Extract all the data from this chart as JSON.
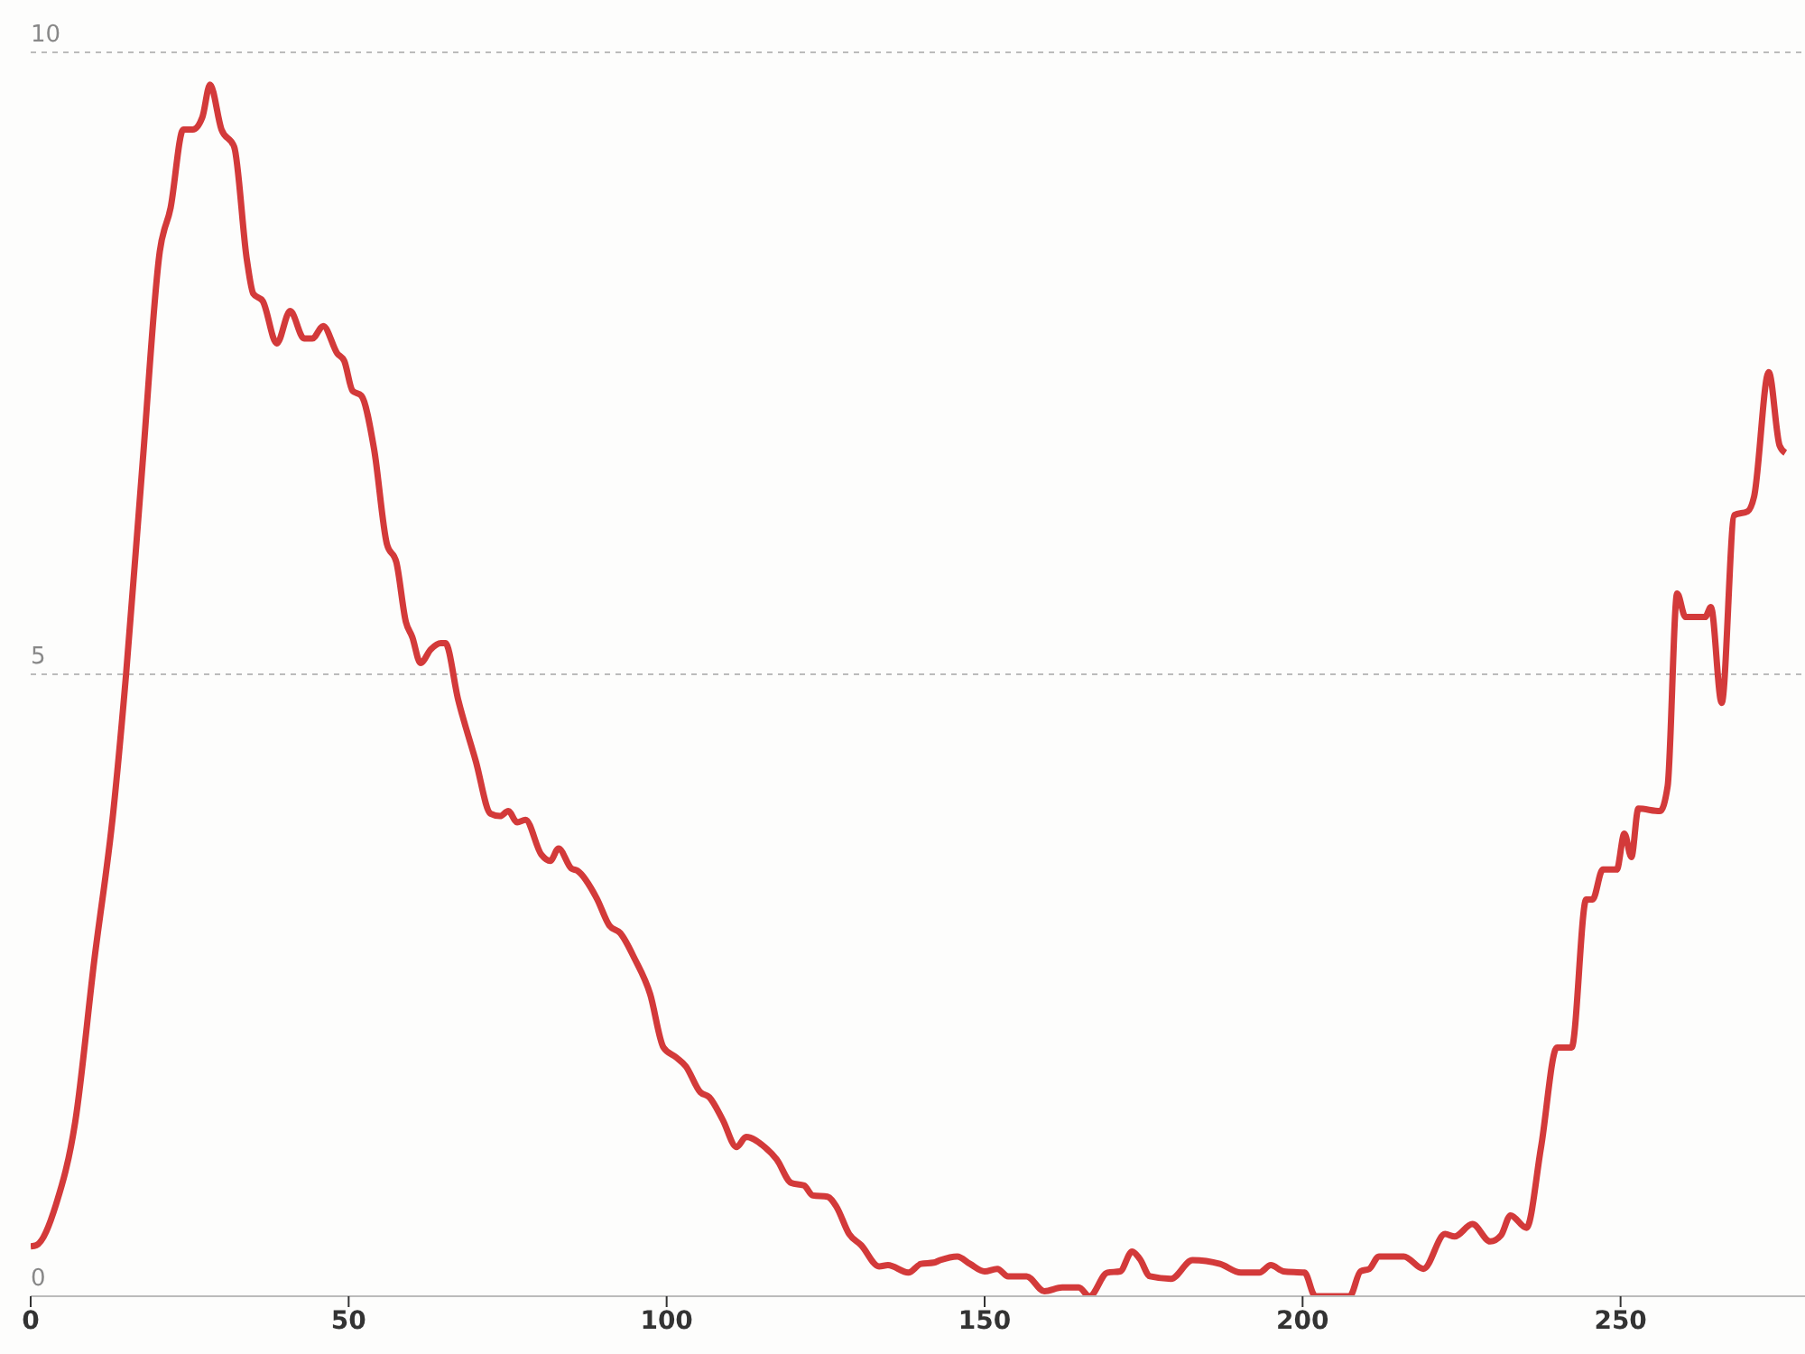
{
  "chart_data": {
    "type": "line",
    "x": [
      0,
      0.9,
      4,
      7,
      10,
      13,
      15,
      17.6,
      20.3,
      22,
      24,
      25.5,
      27,
      28.2,
      30,
      32,
      34,
      35,
      36.5,
      38.7,
      40.8,
      43,
      44.3,
      46,
      48.2,
      49.3,
      50.6,
      52,
      54,
      56,
      57.5,
      59,
      60,
      61.3,
      62.9,
      64.5,
      65.2,
      67.2,
      70,
      72.3,
      73.8,
      75.1,
      76.5,
      77.8,
      80.3,
      81.7,
      83,
      85,
      86,
      89,
      91,
      92.7,
      95,
      97.4,
      99.5,
      101.5,
      103,
      105.3,
      106.7,
      108.8,
      111,
      112.5,
      115.4,
      117.3,
      119.6,
      121.6,
      123,
      125.3,
      126.7,
      128.7,
      130.6,
      133.4,
      134.8,
      138,
      140,
      142,
      143,
      145.7,
      147.7,
      150,
      152,
      153.7,
      156.6,
      159.4,
      162.2,
      164.8,
      166.5,
      169.3,
      171.3,
      173.2,
      174.4,
      176,
      179.3,
      182.7,
      187,
      190.3,
      193.2,
      195,
      197,
      200.3,
      202,
      207.4,
      209.1,
      210.5,
      212,
      215.9,
      219,
      222.4,
      223.9,
      226.7,
      229.5,
      231.2,
      232.7,
      235.2,
      237.5,
      240,
      242.3,
      244.6,
      245.6,
      247.2,
      249.4,
      250.6,
      251.7,
      252.8,
      256.2,
      257.4,
      258.9,
      260.2,
      263.3,
      264.2,
      265.9,
      267.9,
      270,
      271,
      273.3,
      275,
      275.9
    ],
    "series": [
      {
        "color": "#d33a3a",
        "values": [
          0.4,
          0.41,
          0.74,
          1.4,
          2.7,
          3.9,
          5.0,
          6.7,
          8.4,
          8.75,
          9.38,
          9.38,
          9.48,
          9.74,
          9.38,
          9.24,
          8.33,
          8.06,
          8.0,
          7.66,
          7.92,
          7.7,
          7.7,
          7.8,
          7.58,
          7.52,
          7.28,
          7.24,
          6.81,
          6.05,
          5.9,
          5.42,
          5.3,
          5.09,
          5.2,
          5.25,
          5.25,
          4.8,
          4.3,
          3.88,
          3.86,
          3.9,
          3.81,
          3.83,
          3.55,
          3.5,
          3.6,
          3.44,
          3.42,
          3.2,
          2.98,
          2.92,
          2.71,
          2.43,
          2.0,
          1.92,
          1.85,
          1.64,
          1.6,
          1.42,
          1.2,
          1.28,
          1.2,
          1.1,
          0.91,
          0.89,
          0.81,
          0.8,
          0.72,
          0.5,
          0.41,
          0.24,
          0.25,
          0.19,
          0.26,
          0.27,
          0.29,
          0.32,
          0.26,
          0.2,
          0.22,
          0.16,
          0.16,
          0.04,
          0.07,
          0.07,
          0,
          0.19,
          0.2,
          0.36,
          0.3,
          0.16,
          0.14,
          0.29,
          0.26,
          0.19,
          0.19,
          0.25,
          0.2,
          0.19,
          0,
          0,
          0.2,
          0.22,
          0.32,
          0.32,
          0.22,
          0.5,
          0.48,
          0.58,
          0.44,
          0.49,
          0.65,
          0.55,
          1.2,
          2.0,
          2.0,
          3.19,
          3.19,
          3.43,
          3.43,
          3.72,
          3.53,
          3.92,
          3.9,
          4.1,
          5.65,
          5.46,
          5.46,
          5.54,
          4.77,
          6.28,
          6.31,
          6.43,
          7.43,
          6.84,
          6.78
        ]
      }
    ],
    "xlim": [
      0,
      279
    ],
    "xticks": [
      0,
      50,
      100,
      150,
      200,
      250
    ],
    "ylim": [
      0,
      10
    ],
    "yticks": [
      0,
      5,
      10
    ],
    "grid": "y",
    "marker": "none",
    "line_style": "solid"
  }
}
